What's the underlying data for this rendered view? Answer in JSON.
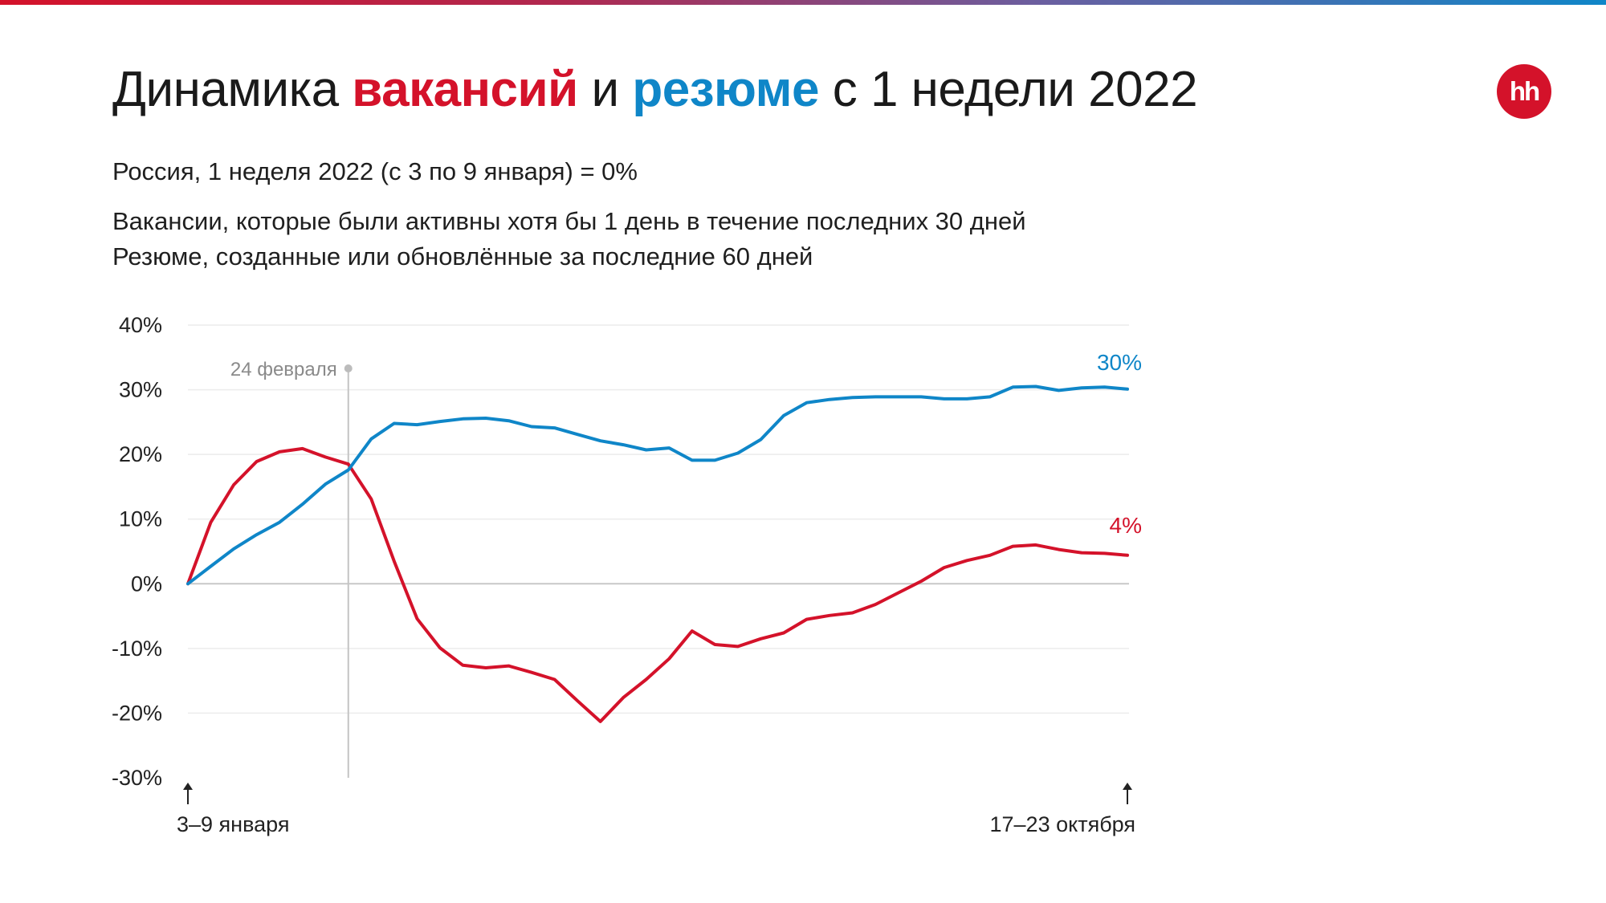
{
  "title": {
    "part1": "Динамика ",
    "red_word": "вакансий",
    "part2": " и ",
    "blue_word": "резюме",
    "part3": " с 1 недели 2022"
  },
  "logo_text": "hh",
  "subtitle": {
    "line1": "Россия, 1 неделя 2022 (с 3 по 9 января) = 0%",
    "line2": "Вакансии, которые были активны хотя бы 1 день в течение последних 30 дней",
    "line3": "Резюме, созданные или обновлённые за последние 60 дней"
  },
  "colors": {
    "vacancies": "#d4122a",
    "resumes": "#0f86c8",
    "accent_gradient_start": "#d4122a",
    "accent_gradient_end": "#0f86c8"
  },
  "chart_data": {
    "type": "line",
    "x": [
      1,
      2,
      3,
      4,
      5,
      6,
      7,
      8,
      9,
      10,
      11,
      12,
      13,
      14,
      15,
      16,
      17,
      18,
      19,
      20,
      21,
      22,
      23,
      24,
      25,
      26,
      27,
      28,
      29,
      30,
      31,
      32,
      33,
      34,
      35,
      36,
      37,
      38,
      39,
      40,
      41,
      42
    ],
    "x_tick_labels": {
      "first": "3–9 января",
      "last": "17–23 октября"
    },
    "series": [
      {
        "key": "vacancies",
        "color": "#d4122a",
        "values": [
          0,
          9.5,
          15.3,
          18.9,
          20.4,
          20.9,
          19.6,
          18.5,
          13.1,
          3.5,
          -5.4,
          -9.9,
          -12.6,
          -13.0,
          -12.7,
          -13.7,
          -14.8,
          -18.1,
          -21.3,
          -17.6,
          -14.8,
          -11.6,
          -7.3,
          -9.4,
          -9.7,
          -8.5,
          -7.6,
          -5.5,
          -4.9,
          -4.5,
          -3.2,
          -1.4,
          0.4,
          2.5,
          3.6,
          4.4,
          5.8,
          6.0,
          5.3,
          4.8,
          4.7,
          4.4
        ],
        "end_label": "4%"
      },
      {
        "key": "resumes",
        "color": "#0f86c8",
        "values": [
          0,
          2.7,
          5.4,
          7.6,
          9.5,
          12.3,
          15.4,
          17.6,
          22.4,
          24.8,
          24.6,
          25.1,
          25.5,
          25.6,
          25.2,
          24.3,
          24.1,
          23.1,
          22.1,
          21.5,
          20.7,
          21.0,
          19.1,
          19.1,
          20.2,
          22.3,
          26.0,
          28.0,
          28.5,
          28.8,
          28.9,
          28.9,
          28.9,
          28.6,
          28.6,
          28.9,
          30.4,
          30.5,
          29.9,
          30.3,
          30.4,
          30.1
        ],
        "end_label": "30%"
      }
    ],
    "ylim": [
      -30,
      40
    ],
    "y_ticks": [
      40,
      30,
      20,
      10,
      0,
      -10,
      -20,
      -30
    ],
    "y_tick_labels": [
      "40%",
      "30%",
      "20%",
      "10%",
      "0%",
      "-10%",
      "-20%",
      "-30%"
    ],
    "grid": true,
    "annotation": {
      "label": "24 февраля",
      "x": 8
    }
  }
}
